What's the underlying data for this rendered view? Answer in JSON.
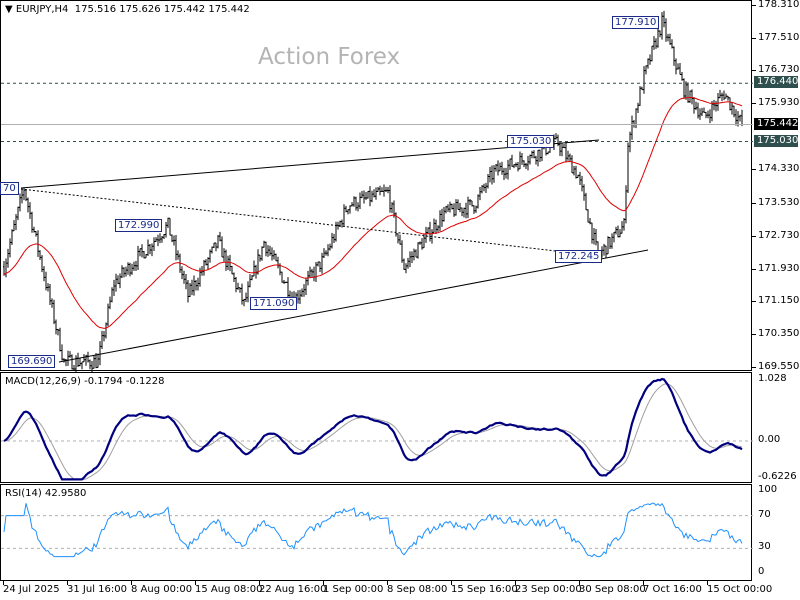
{
  "header": {
    "symbol": "EURJPY,H4",
    "ohlc": "175.516 175.626 175.442 175.442"
  },
  "watermark": "Action Forex",
  "price_axis": [
    "178.310",
    "177.510",
    "176.730",
    "175.930",
    "174.330",
    "173.530",
    "172.730",
    "171.930",
    "171.150",
    "170.350",
    "169.550"
  ],
  "price_tags": [
    {
      "text": "176.440",
      "color": "#2f4f4f"
    },
    {
      "text": "175.442",
      "color": "#000000"
    },
    {
      "text": "175.030",
      "color": "#2f4f4f"
    }
  ],
  "macd": {
    "label": "MACD(12,26,9) -0.1794 -0.1228",
    "axis": [
      "1.028",
      "0.00",
      "-0.6226"
    ],
    "line_color": "#000080",
    "signal_color": "#a0a0a0"
  },
  "rsi": {
    "label": "RSI(14) 42.9580",
    "axis": [
      "100",
      "70",
      "30",
      "0"
    ],
    "line_color": "#1e90ff"
  },
  "time_axis": [
    "24 Jul 2025",
    "31 Jul 16:00",
    "8 Aug 00:00",
    "15 Aug 08:00",
    "22 Aug 16:00",
    "1 Sep 00:00",
    "8 Sep 08:00",
    "15 Sep 16:00",
    "23 Sep 00:00",
    "30 Sep 08:00",
    "7 Oct 16:00",
    "15 Oct 00:00"
  ],
  "chart_data": {
    "type": "line",
    "title": "EURJPY,H4",
    "ylim": [
      169.55,
      178.31
    ],
    "xlabel": "",
    "ylabel": "",
    "moving_average_color": "#e00000",
    "keypoints_bar_close": [
      [
        0,
        172.0
      ],
      [
        10,
        173.9
      ],
      [
        30,
        169.7
      ],
      [
        47,
        169.7
      ],
      [
        55,
        171.6
      ],
      [
        82,
        173.0
      ],
      [
        92,
        171.3
      ],
      [
        107,
        172.6
      ],
      [
        120,
        171.1
      ],
      [
        130,
        172.6
      ],
      [
        145,
        171.2
      ],
      [
        160,
        172.2
      ],
      [
        172,
        173.5
      ],
      [
        192,
        173.8
      ],
      [
        200,
        172.0
      ],
      [
        220,
        173.3
      ],
      [
        235,
        173.5
      ],
      [
        245,
        174.3
      ],
      [
        260,
        174.6
      ],
      [
        277,
        175.0
      ],
      [
        287,
        174.2
      ],
      [
        297,
        172.25
      ],
      [
        310,
        173.0
      ],
      [
        312,
        175.0
      ],
      [
        320,
        176.6
      ],
      [
        329,
        177.91
      ],
      [
        340,
        176.3
      ],
      [
        350,
        175.6
      ],
      [
        360,
        176.2
      ],
      [
        369,
        175.442
      ]
    ],
    "annotations": [
      {
        "text": "70",
        "price": 173.87
      },
      {
        "text": "172.990",
        "price": 172.99
      },
      {
        "text": "171.090",
        "price": 171.09
      },
      {
        "text": "169.690",
        "price": 169.69
      },
      {
        "text": "175.030",
        "price": 175.03
      },
      {
        "text": "172.245",
        "price": 172.245
      },
      {
        "text": "177.910",
        "price": 177.91
      }
    ],
    "horizontal_levels": [
      176.44,
      175.03,
      175.442
    ]
  }
}
